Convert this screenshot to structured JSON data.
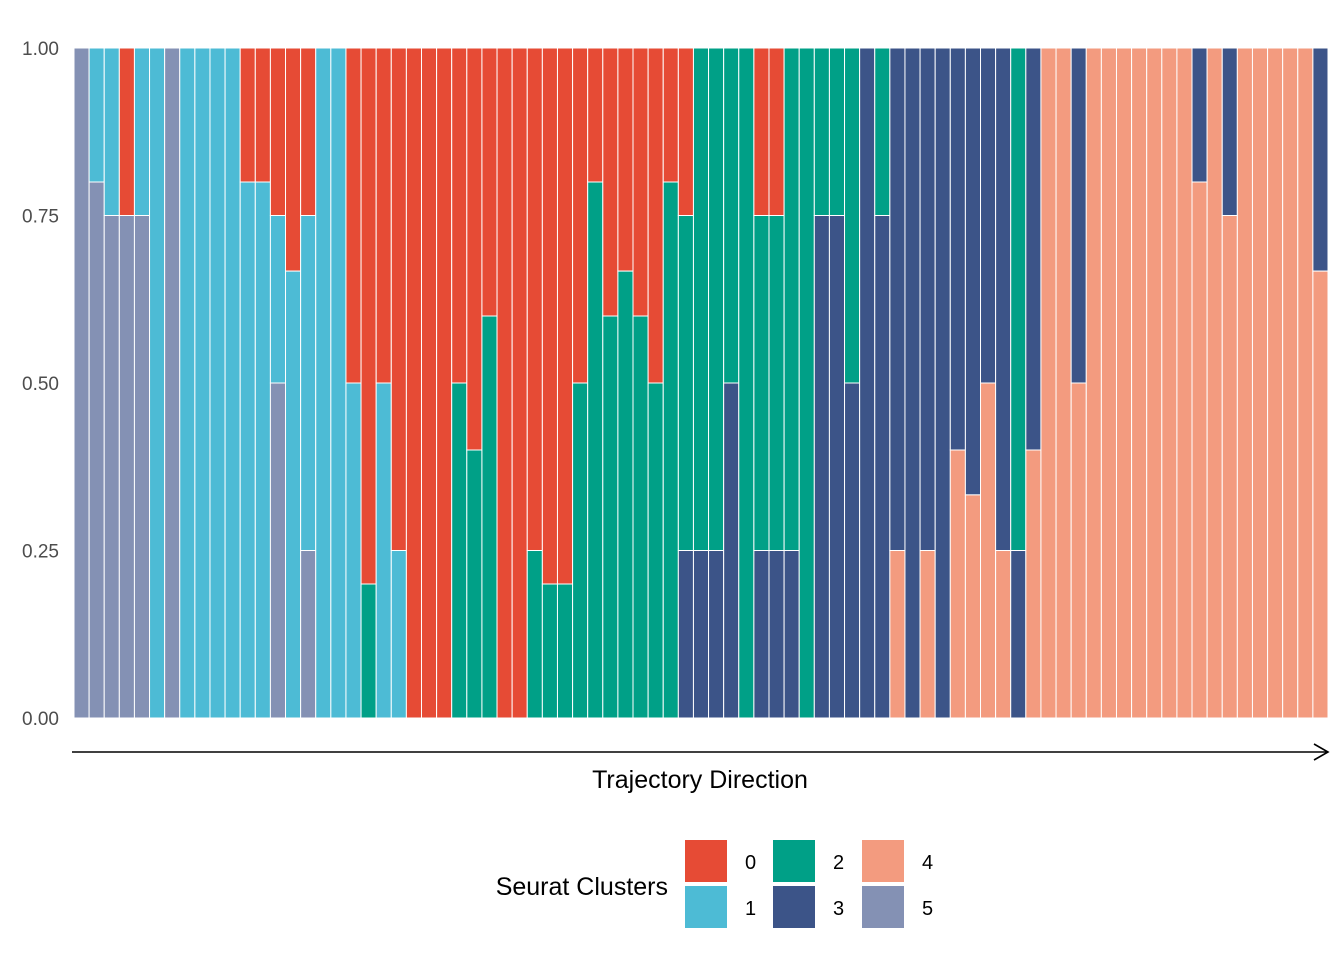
{
  "chart_data": {
    "type": "bar",
    "stacked": true,
    "ylim": [
      0,
      1
    ],
    "yticks": [
      0,
      0.25,
      0.5,
      0.75,
      1
    ],
    "ytick_labels": [
      "0.00",
      "0.25",
      "0.50",
      "0.75",
      "1.00"
    ],
    "xlabel": "Trajectory Direction",
    "x_axis_arrow": true,
    "grid": false,
    "legend": {
      "title": "Seurat Clusters",
      "placement": "bottom",
      "entries": [
        {
          "label": "0",
          "color": "#E64B35"
        },
        {
          "label": "1",
          "color": "#4DBBD5"
        },
        {
          "label": "2",
          "color": "#00A087"
        },
        {
          "label": "3",
          "color": "#3C5488"
        },
        {
          "label": "4",
          "color": "#F39B7F"
        },
        {
          "label": "5",
          "color": "#8491B4"
        }
      ]
    },
    "stack_order_top_to_bottom": [
      "0",
      "1",
      "2",
      "3",
      "4",
      "5"
    ],
    "bars": [
      {
        "5": 1
      },
      {
        "1": 0.2,
        "5": 0.8
      },
      {
        "1": 0.25,
        "5": 0.75
      },
      {
        "0": 0.25,
        "5": 0.75
      },
      {
        "1": 0.25,
        "5": 0.75
      },
      {
        "1": 1
      },
      {
        "5": 1
      },
      {
        "1": 1
      },
      {
        "1": 1
      },
      {
        "1": 1
      },
      {
        "1": 1
      },
      {
        "0": 0.2,
        "1": 0.8
      },
      {
        "0": 0.2,
        "1": 0.8
      },
      {
        "0": 0.25,
        "1": 0.25,
        "5": 0.5
      },
      {
        "0": 0.333,
        "1": 0.667
      },
      {
        "0": 0.25,
        "1": 0.5,
        "5": 0.25
      },
      {
        "1": 1
      },
      {
        "1": 1
      },
      {
        "0": 0.5,
        "1": 0.5
      },
      {
        "0": 0.8,
        "2": 0.2
      },
      {
        "0": 0.5,
        "1": 0.5
      },
      {
        "0": 0.75,
        "1": 0.25
      },
      {
        "0": 1
      },
      {
        "0": 1
      },
      {
        "0": 1
      },
      {
        "0": 0.5,
        "2": 0.5
      },
      {
        "0": 0.6,
        "2": 0.4
      },
      {
        "0": 0.4,
        "2": 0.6
      },
      {
        "0": 1
      },
      {
        "0": 1
      },
      {
        "0": 0.75,
        "2": 0.25
      },
      {
        "0": 0.8,
        "2": 0.2
      },
      {
        "0": 0.8,
        "2": 0.2
      },
      {
        "0": 0.5,
        "2": 0.5
      },
      {
        "0": 0.2,
        "2": 0.8
      },
      {
        "0": 0.4,
        "2": 0.6
      },
      {
        "0": 0.333,
        "2": 0.667
      },
      {
        "0": 0.4,
        "2": 0.6
      },
      {
        "0": 0.5,
        "2": 0.5
      },
      {
        "0": 0.2,
        "2": 0.8
      },
      {
        "0": 0.25,
        "2": 0.5,
        "3": 0.25
      },
      {
        "2": 0.75,
        "3": 0.25
      },
      {
        "2": 0.75,
        "3": 0.25
      },
      {
        "2": 0.5,
        "3": 0.5
      },
      {
        "2": 1
      },
      {
        "0": 0.25,
        "2": 0.5,
        "3": 0.25
      },
      {
        "0": 0.25,
        "2": 0.5,
        "3": 0.25
      },
      {
        "2": 0.75,
        "3": 0.25
      },
      {
        "2": 1
      },
      {
        "2": 0.25,
        "3": 0.75
      },
      {
        "2": 0.25,
        "3": 0.75
      },
      {
        "2": 0.5,
        "3": 0.5
      },
      {
        "3": 1
      },
      {
        "2": 0.25,
        "3": 0.75
      },
      {
        "3": 0.75,
        "4": 0.25
      },
      {
        "3": 1
      },
      {
        "3": 0.75,
        "4": 0.25
      },
      {
        "3": 1
      },
      {
        "3": 0.6,
        "4": 0.4
      },
      {
        "3": 0.667,
        "4": 0.333
      },
      {
        "3": 0.5,
        "4": 0.5
      },
      {
        "3": 0.75,
        "4": 0.25
      },
      {
        "2": 0.75,
        "3": 0.25
      },
      {
        "3": 0.6,
        "4": 0.4
      },
      {
        "4": 1
      },
      {
        "4": 1
      },
      {
        "3": 0.5,
        "4": 0.5
      },
      {
        "4": 1
      },
      {
        "4": 1
      },
      {
        "4": 1
      },
      {
        "4": 1
      },
      {
        "4": 1
      },
      {
        "4": 1
      },
      {
        "4": 1
      },
      {
        "3": 0.2,
        "4": 0.8
      },
      {
        "4": 1
      },
      {
        "3": 0.25,
        "4": 0.75
      },
      {
        "4": 1
      },
      {
        "4": 1
      },
      {
        "4": 1
      },
      {
        "4": 1
      },
      {
        "4": 1
      },
      {
        "3": 0.333,
        "4": 0.667
      }
    ]
  }
}
